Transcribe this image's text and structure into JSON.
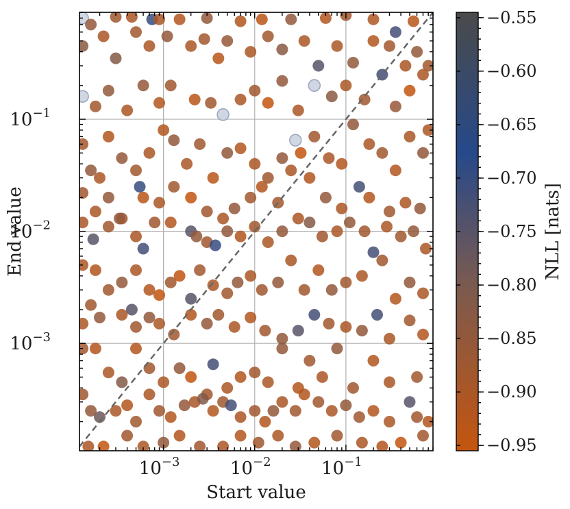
{
  "chart_data": {
    "type": "scatter",
    "title": "",
    "xlabel": "Start value",
    "ylabel": "End value",
    "xscale": "log",
    "yscale": "log",
    "xlim": [
      0.00012,
      0.9
    ],
    "ylim": [
      0.00011,
      0.9
    ],
    "x_ticks": [
      {
        "value": 0.001,
        "label": "10",
        "exp": "−3"
      },
      {
        "value": 0.01,
        "label": "10",
        "exp": "−2"
      },
      {
        "value": 0.1,
        "label": "10",
        "exp": "−1"
      }
    ],
    "y_ticks": [
      {
        "value": 0.001,
        "label": "10",
        "exp": "−3"
      },
      {
        "value": 0.01,
        "label": "10",
        "exp": "−2"
      },
      {
        "value": 0.1,
        "label": "10",
        "exp": "−1"
      }
    ],
    "grid": true,
    "reference_line": "y = x",
    "colorbar": {
      "label": "NLL [nats]",
      "range": [
        -0.955,
        -0.545
      ],
      "ticks": [
        "−0.55",
        "−0.60",
        "−0.65",
        "−0.70",
        "−0.75",
        "−0.80",
        "−0.85",
        "−0.90",
        "−0.95"
      ],
      "tick_values": [
        -0.55,
        -0.6,
        -0.65,
        -0.7,
        -0.75,
        -0.8,
        -0.85,
        -0.9,
        -0.95
      ],
      "colors": [
        "#4a4a4a",
        "#26498a",
        "#7a5a50",
        "#c4550f"
      ]
    },
    "points": [
      [
        0.00013,
        0.8,
        -0.62
      ],
      [
        0.00016,
        0.7,
        -0.85
      ],
      [
        0.0003,
        0.82,
        -0.88
      ],
      [
        0.00045,
        0.82,
        -0.9
      ],
      [
        0.00075,
        0.78,
        -0.7
      ],
      [
        0.0009,
        0.78,
        -0.9
      ],
      [
        0.0015,
        0.78,
        -0.92
      ],
      [
        0.003,
        0.8,
        -0.85
      ],
      [
        0.007,
        0.75,
        -0.92
      ],
      [
        0.012,
        0.78,
        -0.93
      ],
      [
        0.025,
        0.78,
        -0.85
      ],
      [
        0.06,
        0.8,
        -0.92
      ],
      [
        0.1,
        0.85,
        -0.88
      ],
      [
        0.2,
        0.78,
        -0.91
      ],
      [
        0.35,
        0.6,
        -0.72
      ],
      [
        0.55,
        0.75,
        -0.93
      ],
      [
        0.00013,
        0.45,
        -0.83
      ],
      [
        0.00022,
        0.55,
        -0.9
      ],
      [
        0.0003,
        0.35,
        -0.82
      ],
      [
        0.0005,
        0.6,
        -0.88
      ],
      [
        0.0007,
        0.45,
        -0.9
      ],
      [
        0.0011,
        0.55,
        -0.85
      ],
      [
        0.002,
        0.45,
        -0.9
      ],
      [
        0.0028,
        0.52,
        -0.88
      ],
      [
        0.004,
        0.35,
        -0.93
      ],
      [
        0.005,
        0.5,
        -0.86
      ],
      [
        0.009,
        0.4,
        -0.9
      ],
      [
        0.014,
        0.55,
        -0.88
      ],
      [
        0.02,
        0.42,
        -0.83
      ],
      [
        0.035,
        0.5,
        -0.9
      ],
      [
        0.05,
        0.3,
        -0.75
      ],
      [
        0.08,
        0.45,
        -0.9
      ],
      [
        0.12,
        0.32,
        -0.85
      ],
      [
        0.2,
        0.5,
        -0.92
      ],
      [
        0.3,
        0.45,
        -0.88
      ],
      [
        0.45,
        0.3,
        -0.9
      ],
      [
        0.6,
        0.4,
        -0.85
      ],
      [
        0.8,
        0.3,
        -0.88
      ],
      [
        0.00013,
        0.16,
        -0.6
      ],
      [
        0.00018,
        0.13,
        -0.88
      ],
      [
        0.00025,
        0.18,
        -0.85
      ],
      [
        0.0004,
        0.12,
        -0.9
      ],
      [
        0.0006,
        0.2,
        -0.85
      ],
      [
        0.0009,
        0.14,
        -0.92
      ],
      [
        0.0012,
        0.2,
        -0.88
      ],
      [
        0.0022,
        0.15,
        -0.93
      ],
      [
        0.0033,
        0.14,
        -0.88
      ],
      [
        0.0045,
        0.11,
        -0.65
      ],
      [
        0.007,
        0.15,
        -0.9
      ],
      [
        0.01,
        0.18,
        -0.88
      ],
      [
        0.014,
        0.14,
        -0.95
      ],
      [
        0.02,
        0.22,
        -0.85
      ],
      [
        0.03,
        0.12,
        -0.9
      ],
      [
        0.045,
        0.2,
        -0.6
      ],
      [
        0.07,
        0.16,
        -0.83
      ],
      [
        0.1,
        0.2,
        -0.9
      ],
      [
        0.16,
        0.15,
        -0.88
      ],
      [
        0.25,
        0.25,
        -0.72
      ],
      [
        0.35,
        0.13,
        -0.86
      ],
      [
        0.5,
        0.18,
        -0.95
      ],
      [
        0.7,
        0.25,
        -0.9
      ],
      [
        0.00013,
        0.06,
        -0.88
      ],
      [
        0.00016,
        0.035,
        -0.85
      ],
      [
        0.0002,
        0.03,
        -0.9
      ],
      [
        0.00025,
        0.07,
        -0.92
      ],
      [
        0.00035,
        0.045,
        -0.85
      ],
      [
        0.0005,
        0.035,
        -0.88
      ],
      [
        0.0007,
        0.05,
        -0.9
      ],
      [
        0.001,
        0.08,
        -0.92
      ],
      [
        0.0013,
        0.065,
        -0.85
      ],
      [
        0.0018,
        0.04,
        -0.9
      ],
      [
        0.0025,
        0.06,
        -0.88
      ],
      [
        0.0035,
        0.03,
        -0.93
      ],
      [
        0.005,
        0.05,
        -0.85
      ],
      [
        0.007,
        0.055,
        -0.92
      ],
      [
        0.01,
        0.04,
        -0.9
      ],
      [
        0.014,
        0.03,
        -0.88
      ],
      [
        0.02,
        0.045,
        -0.85
      ],
      [
        0.028,
        0.065,
        -0.6
      ],
      [
        0.032,
        0.05,
        -0.95
      ],
      [
        0.045,
        0.07,
        -0.88
      ],
      [
        0.065,
        0.045,
        -0.9
      ],
      [
        0.09,
        0.04,
        -0.92
      ],
      [
        0.12,
        0.09,
        -0.85
      ],
      [
        0.18,
        0.06,
        -0.9
      ],
      [
        0.25,
        0.05,
        -0.88
      ],
      [
        0.35,
        0.035,
        -0.92
      ],
      [
        0.5,
        0.07,
        -0.9
      ],
      [
        0.7,
        0.05,
        -0.85
      ],
      [
        0.8,
        0.08,
        -0.9
      ],
      [
        0.00013,
        0.022,
        -0.88
      ],
      [
        0.00018,
        0.015,
        -0.9
      ],
      [
        0.00025,
        0.02,
        -0.85
      ],
      [
        0.00035,
        0.013,
        -0.88
      ],
      [
        0.00055,
        0.025,
        -0.7
      ],
      [
        0.0006,
        0.02,
        -0.93
      ],
      [
        0.0009,
        0.018,
        -0.9
      ],
      [
        0.0013,
        0.025,
        -0.88
      ],
      [
        0.002,
        0.02,
        -0.95
      ],
      [
        0.003,
        0.015,
        -0.88
      ],
      [
        0.0045,
        0.013,
        -0.9
      ],
      [
        0.006,
        0.016,
        -0.85
      ],
      [
        0.009,
        0.02,
        -0.88
      ],
      [
        0.012,
        0.025,
        -0.92
      ],
      [
        0.018,
        0.018,
        -0.88
      ],
      [
        0.025,
        0.035,
        -0.9
      ],
      [
        0.04,
        0.03,
        -0.92
      ],
      [
        0.06,
        0.02,
        -0.85
      ],
      [
        0.09,
        0.016,
        -0.9
      ],
      [
        0.14,
        0.025,
        -0.72
      ],
      [
        0.18,
        0.02,
        -0.92
      ],
      [
        0.3,
        0.015,
        -0.88
      ],
      [
        0.45,
        0.018,
        -0.9
      ],
      [
        0.65,
        0.016,
        -0.85
      ],
      [
        0.00013,
        0.012,
        -0.9
      ],
      [
        0.00017,
        0.0085,
        -0.75
      ],
      [
        0.00025,
        0.011,
        -0.88
      ],
      [
        0.00033,
        0.013,
        -0.85
      ],
      [
        0.0005,
        0.009,
        -0.9
      ],
      [
        0.0006,
        0.007,
        -0.72
      ],
      [
        0.0008,
        0.012,
        -0.88
      ],
      [
        0.0012,
        0.012,
        -0.92
      ],
      [
        0.002,
        0.01,
        -0.75
      ],
      [
        0.0023,
        0.009,
        -0.85
      ],
      [
        0.003,
        0.008,
        -0.88
      ],
      [
        0.0037,
        0.0075,
        -0.7
      ],
      [
        0.005,
        0.01,
        -0.85
      ],
      [
        0.007,
        0.009,
        -0.92
      ],
      [
        0.01,
        0.011,
        -0.88
      ],
      [
        0.014,
        0.008,
        -0.9
      ],
      [
        0.02,
        0.01,
        -0.85
      ],
      [
        0.03,
        0.013,
        -0.9
      ],
      [
        0.04,
        0.012,
        -0.82
      ],
      [
        0.055,
        0.009,
        -0.88
      ],
      [
        0.08,
        0.01,
        -0.9
      ],
      [
        0.11,
        0.012,
        -0.85
      ],
      [
        0.16,
        0.01,
        -0.88
      ],
      [
        0.2,
        0.0065,
        -0.72
      ],
      [
        0.28,
        0.011,
        -0.9
      ],
      [
        0.4,
        0.009,
        -0.88
      ],
      [
        0.55,
        0.01,
        -0.85
      ],
      [
        0.75,
        0.007,
        -0.9
      ],
      [
        0.00013,
        0.005,
        -0.9
      ],
      [
        0.00018,
        0.0045,
        -0.92
      ],
      [
        0.00025,
        0.003,
        -0.88
      ],
      [
        0.00035,
        0.0035,
        -0.85
      ],
      [
        0.0005,
        0.0045,
        -0.9
      ],
      [
        0.0007,
        0.003,
        -0.92
      ],
      [
        0.0009,
        0.0027,
        -0.95
      ],
      [
        0.0012,
        0.0035,
        -0.88
      ],
      [
        0.0015,
        0.004,
        -0.95
      ],
      [
        0.002,
        0.0025,
        -0.75
      ],
      [
        0.0025,
        0.0045,
        -0.88
      ],
      [
        0.0035,
        0.0033,
        -0.9
      ],
      [
        0.005,
        0.0028,
        -0.88
      ],
      [
        0.0065,
        0.0035,
        -0.85
      ],
      [
        0.009,
        0.004,
        -0.9
      ],
      [
        0.012,
        0.003,
        -0.88
      ],
      [
        0.018,
        0.0035,
        -0.85
      ],
      [
        0.025,
        0.0055,
        -0.9
      ],
      [
        0.035,
        0.003,
        -0.88
      ],
      [
        0.05,
        0.0045,
        -0.92
      ],
      [
        0.07,
        0.003,
        -0.85
      ],
      [
        0.1,
        0.0035,
        -0.88
      ],
      [
        0.15,
        0.004,
        -0.9
      ],
      [
        0.25,
        0.0055,
        -0.88
      ],
      [
        0.35,
        0.0025,
        -0.92
      ],
      [
        0.5,
        0.0035,
        -0.85
      ],
      [
        0.7,
        0.0028,
        -0.9
      ],
      [
        0.00013,
        0.0015,
        -0.9
      ],
      [
        0.00016,
        0.0022,
        -0.88
      ],
      [
        0.0002,
        0.0017,
        -0.85
      ],
      [
        0.00035,
        0.0018,
        -0.9
      ],
      [
        0.00045,
        0.002,
        -0.75
      ],
      [
        0.0005,
        0.0014,
        -0.88
      ],
      [
        0.0007,
        0.0017,
        -0.85
      ],
      [
        0.0009,
        0.0015,
        -0.9
      ],
      [
        0.0013,
        0.0012,
        -0.88
      ],
      [
        0.002,
        0.0018,
        -0.92
      ],
      [
        0.003,
        0.0015,
        -0.85
      ],
      [
        0.004,
        0.0018,
        -0.88
      ],
      [
        0.006,
        0.0014,
        -0.9
      ],
      [
        0.009,
        0.0017,
        -0.92
      ],
      [
        0.013,
        0.0013,
        -0.88
      ],
      [
        0.02,
        0.0011,
        -0.85
      ],
      [
        0.03,
        0.0013,
        -0.75
      ],
      [
        0.045,
        0.0018,
        -0.72
      ],
      [
        0.065,
        0.0015,
        -0.88
      ],
      [
        0.1,
        0.0014,
        -0.9
      ],
      [
        0.15,
        0.0013,
        -0.85
      ],
      [
        0.22,
        0.0018,
        -0.72
      ],
      [
        0.3,
        0.0011,
        -0.9
      ],
      [
        0.5,
        0.0016,
        -0.88
      ],
      [
        0.7,
        0.0012,
        -0.92
      ],
      [
        0.00013,
        0.0009,
        -0.88
      ],
      [
        0.00018,
        0.0009,
        -0.92
      ],
      [
        0.00025,
        0.00055,
        -0.9
      ],
      [
        0.00035,
        0.00045,
        -0.82
      ],
      [
        0.0005,
        0.0009,
        -0.92
      ],
      [
        0.0007,
        0.0006,
        -0.88
      ],
      [
        0.001,
        0.00045,
        -0.9
      ],
      [
        0.0015,
        0.0006,
        -0.85
      ],
      [
        0.002,
        0.0005,
        -0.95
      ],
      [
        0.003,
        0.00035,
        -0.88
      ],
      [
        0.0035,
        0.00065,
        -0.72
      ],
      [
        0.005,
        0.0004,
        -0.9
      ],
      [
        0.007,
        0.0005,
        -0.92
      ],
      [
        0.01,
        0.00055,
        -0.88
      ],
      [
        0.014,
        0.00045,
        -0.9
      ],
      [
        0.02,
        0.0009,
        -0.85
      ],
      [
        0.03,
        0.0004,
        -0.92
      ],
      [
        0.04,
        0.0007,
        -0.88
      ],
      [
        0.055,
        0.0005,
        -0.9
      ],
      [
        0.08,
        0.0009,
        -0.85
      ],
      [
        0.12,
        0.0004,
        -0.88
      ],
      [
        0.2,
        0.0007,
        -0.92
      ],
      [
        0.3,
        0.00045,
        -0.9
      ],
      [
        0.6,
        0.0005,
        -0.88
      ],
      [
        0.00013,
        0.00035,
        -0.88
      ],
      [
        0.00016,
        0.00025,
        -0.85
      ],
      [
        0.0002,
        0.00022,
        -0.78
      ],
      [
        0.0003,
        0.00025,
        -0.9
      ],
      [
        0.0004,
        0.00028,
        -0.92
      ],
      [
        0.0005,
        0.0002,
        -0.88
      ],
      [
        0.0007,
        0.00035,
        -0.9
      ],
      [
        0.0009,
        0.00025,
        -0.88
      ],
      [
        0.0012,
        0.00022,
        -0.92
      ],
      [
        0.0017,
        0.00028,
        -0.85
      ],
      [
        0.0022,
        0.0003,
        -0.9
      ],
      [
        0.0027,
        0.00032,
        -0.82
      ],
      [
        0.0035,
        0.00025,
        -0.92
      ],
      [
        0.0045,
        0.0003,
        -0.88
      ],
      [
        0.0055,
        0.00028,
        -0.72
      ],
      [
        0.007,
        0.00022,
        -0.9
      ],
      [
        0.01,
        0.00025,
        -0.88
      ],
      [
        0.013,
        0.0002,
        -0.92
      ],
      [
        0.016,
        0.00025,
        -0.85
      ],
      [
        0.02,
        0.0003,
        -0.9
      ],
      [
        0.028,
        0.00025,
        -0.88
      ],
      [
        0.035,
        0.00035,
        -0.92
      ],
      [
        0.05,
        0.0003,
        -0.88
      ],
      [
        0.07,
        0.00025,
        -0.9
      ],
      [
        0.1,
        0.00028,
        -0.85
      ],
      [
        0.14,
        0.00022,
        -0.88
      ],
      [
        0.2,
        0.00025,
        -0.92
      ],
      [
        0.3,
        0.0002,
        -0.9
      ],
      [
        0.5,
        0.0003,
        -0.75
      ],
      [
        0.6,
        0.00022,
        -0.88
      ],
      [
        0.8,
        0.0002,
        -0.92
      ],
      [
        0.00015,
        0.00012,
        -0.9
      ],
      [
        0.00022,
        0.00012,
        -0.95
      ],
      [
        0.0004,
        0.00015,
        -0.88
      ],
      [
        0.0006,
        0.00012,
        -0.9
      ],
      [
        0.001,
        0.00013,
        -0.85
      ],
      [
        0.0015,
        0.00015,
        -0.92
      ],
      [
        0.0025,
        0.00012,
        -0.88
      ],
      [
        0.0045,
        0.00012,
        -0.9
      ],
      [
        0.007,
        0.00015,
        -0.92
      ],
      [
        0.011,
        0.00013,
        -0.88
      ],
      [
        0.018,
        0.00015,
        -0.9
      ],
      [
        0.028,
        0.00012,
        -0.85
      ],
      [
        0.045,
        0.00013,
        -0.92
      ],
      [
        0.08,
        0.00015,
        -0.88
      ],
      [
        0.15,
        0.00013,
        -0.9
      ],
      [
        0.25,
        0.00012,
        -0.92
      ],
      [
        0.4,
        0.00013,
        -0.95
      ],
      [
        0.7,
        0.00015,
        -0.88
      ]
    ]
  }
}
